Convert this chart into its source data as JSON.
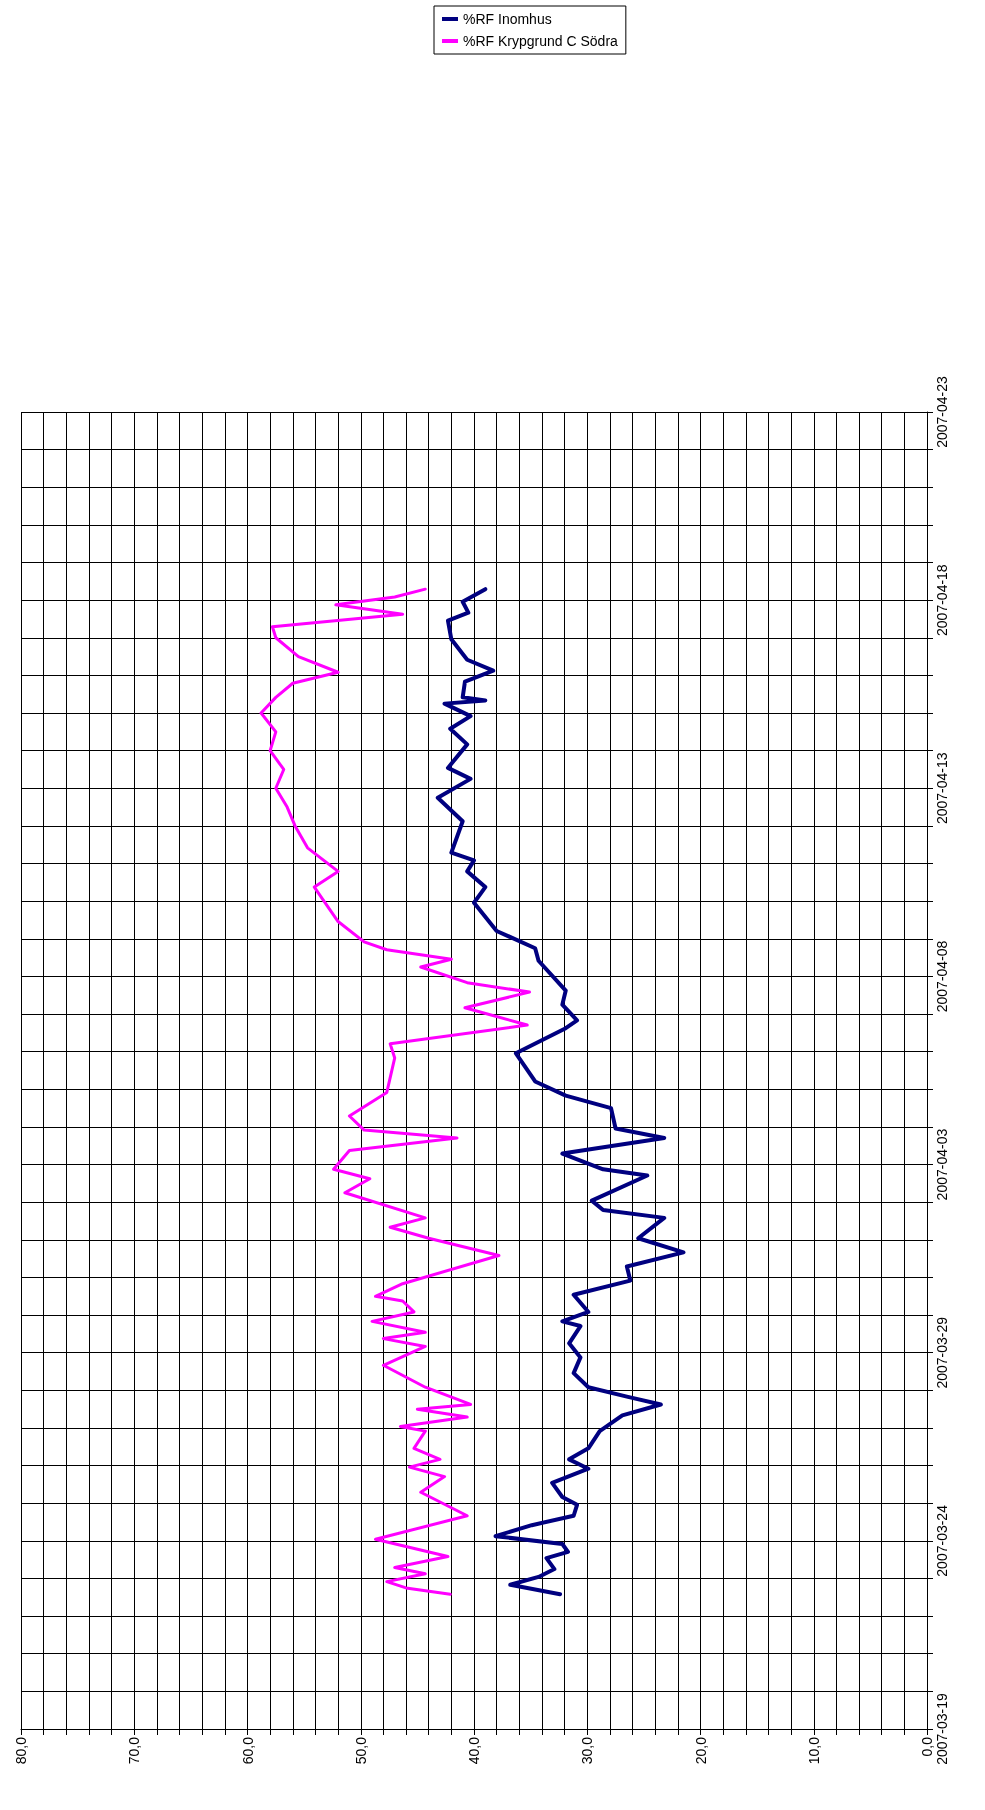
{
  "chart_data": {
    "type": "line",
    "orientation": "horizontal",
    "ylim": [
      "2007-03-19",
      "2007-04-23"
    ],
    "yticks": [
      "2007-03-19",
      {
        "value": "2007-03-20",
        "label": null
      },
      {
        "value": "2007-03-21",
        "label": null
      },
      {
        "value": "2007-03-22",
        "label": null
      },
      {
        "value": "2007-03-23",
        "label": null
      },
      "2007-03-24",
      {
        "value": "2007-03-25",
        "label": null
      },
      {
        "value": "2007-03-26",
        "label": null
      },
      {
        "value": "2007-03-27",
        "label": null
      },
      {
        "value": "2007-03-28",
        "label": null
      },
      "2007-03-29",
      {
        "value": "2007-03-30",
        "label": null
      },
      {
        "value": "2007-03-31",
        "label": null
      },
      {
        "value": "2007-04-01",
        "label": null
      },
      {
        "value": "2007-04-02",
        "label": null
      },
      "2007-04-03",
      {
        "value": "2007-04-04",
        "label": null
      },
      {
        "value": "2007-04-05",
        "label": null
      },
      {
        "value": "2007-04-06",
        "label": null
      },
      {
        "value": "2007-04-07",
        "label": null
      },
      "2007-04-08",
      {
        "value": "2007-04-09",
        "label": null
      },
      {
        "value": "2007-04-10",
        "label": null
      },
      {
        "value": "2007-04-11",
        "label": null
      },
      {
        "value": "2007-04-12",
        "label": null
      },
      "2007-04-13",
      {
        "value": "2007-04-14",
        "label": null
      },
      {
        "value": "2007-04-15",
        "label": null
      },
      {
        "value": "2007-04-16",
        "label": null
      },
      {
        "value": "2007-04-17",
        "label": null
      },
      "2007-04-18",
      {
        "value": "2007-04-19",
        "label": null
      },
      {
        "value": "2007-04-20",
        "label": null
      },
      {
        "value": "2007-04-21",
        "label": null
      },
      {
        "value": "2007-04-22",
        "label": null
      },
      "2007-04-23"
    ],
    "xlim": [
      80,
      0
    ],
    "xticks": [
      {
        "value": 0,
        "label": "0,0"
      },
      {
        "value": 2,
        "label": null
      },
      {
        "value": 4,
        "label": null
      },
      {
        "value": 6,
        "label": null
      },
      {
        "value": 8,
        "label": null
      },
      {
        "value": 10,
        "label": "10,0"
      },
      {
        "value": 12,
        "label": null
      },
      {
        "value": 14,
        "label": null
      },
      {
        "value": 16,
        "label": null
      },
      {
        "value": 18,
        "label": null
      },
      {
        "value": 20,
        "label": "20,0"
      },
      {
        "value": 22,
        "label": null
      },
      {
        "value": 24,
        "label": null
      },
      {
        "value": 26,
        "label": null
      },
      {
        "value": 28,
        "label": null
      },
      {
        "value": 30,
        "label": "30,0"
      },
      {
        "value": 32,
        "label": null
      },
      {
        "value": 34,
        "label": null
      },
      {
        "value": 36,
        "label": null
      },
      {
        "value": 38,
        "label": null
      },
      {
        "value": 40,
        "label": "40,0"
      },
      {
        "value": 42,
        "label": null
      },
      {
        "value": 44,
        "label": null
      },
      {
        "value": 46,
        "label": null
      },
      {
        "value": 48,
        "label": null
      },
      {
        "value": 50,
        "label": "50,0"
      },
      {
        "value": 52,
        "label": null
      },
      {
        "value": 54,
        "label": null
      },
      {
        "value": 56,
        "label": null
      },
      {
        "value": 58,
        "label": null
      },
      {
        "value": 60,
        "label": "60,0"
      },
      {
        "value": 62,
        "label": null
      },
      {
        "value": 64,
        "label": null
      },
      {
        "value": 66,
        "label": null
      },
      {
        "value": 68,
        "label": null
      },
      {
        "value": 70,
        "label": "70,0"
      },
      {
        "value": 72,
        "label": null
      },
      {
        "value": 74,
        "label": null
      },
      {
        "value": 76,
        "label": null
      },
      {
        "value": 78,
        "label": null
      },
      {
        "value": 80,
        "label": "80,0"
      }
    ],
    "grid": true,
    "legend": "top",
    "line_style": "solid",
    "series": [
      {
        "name": "%RF Inomhus",
        "color": "#000080",
        "x": [
          "2007-03-22T14:00",
          "2007-03-22T20:00",
          "2007-03-23T01:00",
          "2007-03-23T06:00",
          "2007-03-23T13:00",
          "2007-03-23T17:00",
          "2007-03-23T22:00",
          "2007-03-24T03:00",
          "2007-03-24T10:00",
          "2007-03-24T16:00",
          "2007-03-24T23:00",
          "2007-03-25T04:00",
          "2007-03-25T13:00",
          "2007-03-25T22:00",
          "2007-03-26T04:00",
          "2007-03-26T11:00",
          "2007-03-26T22:00",
          "2007-03-27T08:00",
          "2007-03-27T15:00",
          "2007-03-27T20:00",
          "2007-03-28T02:00",
          "2007-03-28T11:00",
          "2007-03-28T21:00",
          "2007-03-29T06:00",
          "2007-03-29T17:00",
          "2007-03-29T20:00",
          "2007-03-30T02:00",
          "2007-03-30T13:00",
          "2007-03-30T22:00",
          "2007-03-31T07:00",
          "2007-03-31T16:00",
          "2007-04-01T01:00",
          "2007-04-01T14:00",
          "2007-04-01T19:00",
          "2007-04-02T01:00",
          "2007-04-02T17:00",
          "2007-04-02T21:00",
          "2007-04-03T07:00",
          "2007-04-03T17:00",
          "2007-04-03T23:00",
          "2007-04-04T12:00",
          "2007-04-04T20:00",
          "2007-04-05T05:00",
          "2007-04-05T23:00",
          "2007-04-06T15:00",
          "2007-04-06T20:00",
          "2007-04-07T06:00",
          "2007-04-07T15:00",
          "2007-04-08T10:00",
          "2007-04-08T18:00",
          "2007-04-09T05:00",
          "2007-04-09T23:00",
          "2007-04-10T09:00",
          "2007-04-10T19:00",
          "2007-04-11T02:00",
          "2007-04-11T07:00",
          "2007-04-12T03:00",
          "2007-04-12T18:00",
          "2007-04-13T06:00",
          "2007-04-13T13:00",
          "2007-04-14T04:00",
          "2007-04-14T14:00",
          "2007-04-14T22:00",
          "2007-04-15T06:00",
          "2007-04-15T08:00",
          "2007-04-15T10:00",
          "2007-04-15T20:00",
          "2007-04-16T03:00",
          "2007-04-16T10:00",
          "2007-04-16T23:00",
          "2007-04-17T11:00",
          "2007-04-17T16:00",
          "2007-04-17T23:00",
          "2007-04-18T07:00"
        ],
        "values": [
          32.4,
          36.8,
          34.3,
          32.9,
          33.6,
          31.7,
          32.2,
          38.1,
          34.9,
          31.2,
          30.9,
          32.2,
          33.1,
          29.9,
          31.6,
          29.9,
          28.9,
          26.9,
          23.5,
          26.5,
          29.9,
          31.2,
          30.6,
          31.6,
          30.6,
          32.2,
          29.9,
          31.2,
          26.2,
          26.5,
          21.5,
          25.5,
          23.2,
          28.6,
          29.6,
          24.7,
          28.6,
          32.2,
          23.2,
          27.5,
          27.9,
          31.9,
          34.6,
          36.3,
          31.9,
          30.9,
          32.2,
          31.9,
          34.3,
          34.6,
          38.0,
          40.0,
          39.0,
          40.6,
          40.0,
          42.0,
          41.0,
          43.2,
          40.3,
          42.3,
          40.6,
          42.1,
          40.3,
          42.6,
          39.0,
          41.0,
          40.8,
          38.3,
          40.6,
          42.0,
          42.3,
          40.5,
          41.0,
          39.0
        ]
      },
      {
        "name": "%RF Krypgrund C Södra",
        "color": "#ff00ff",
        "x": [
          "2007-03-22T14:00",
          "2007-03-22T18:00",
          "2007-03-22T22:00",
          "2007-03-23T03:00",
          "2007-03-23T07:00",
          "2007-03-23T14:00",
          "2007-03-24T01:00",
          "2007-03-24T16:00",
          "2007-03-25T07:00",
          "2007-03-25T17:00",
          "2007-03-25T23:00",
          "2007-03-26T04:00",
          "2007-03-26T11:00",
          "2007-03-26T22:00",
          "2007-03-27T01:00",
          "2007-03-27T07:00",
          "2007-03-27T12:00",
          "2007-03-27T15:00",
          "2007-03-28T02:00",
          "2007-03-28T16:00",
          "2007-03-29T04:00",
          "2007-03-29T09:00",
          "2007-03-29T13:00",
          "2007-03-29T20:00",
          "2007-03-30T02:00",
          "2007-03-30T09:00",
          "2007-03-30T12:00",
          "2007-03-30T20:00",
          "2007-03-31T14:00",
          "2007-04-01T01:00",
          "2007-04-01T08:00",
          "2007-04-01T14:00",
          "2007-04-02T06:00",
          "2007-04-02T15:00",
          "2007-04-02T21:00",
          "2007-04-03T09:00",
          "2007-04-03T17:00",
          "2007-04-03T22:00",
          "2007-04-04T07:00",
          "2007-04-04T22:00",
          "2007-04-05T20:00",
          "2007-04-06T05:00",
          "2007-04-06T17:00",
          "2007-04-07T04:00",
          "2007-04-07T14:00",
          "2007-04-07T20:00",
          "2007-04-08T06:00",
          "2007-04-08T11:00",
          "2007-04-08T17:00",
          "2007-04-08T22:00",
          "2007-04-09T11:00",
          "2007-04-10T09:00",
          "2007-04-10T19:00",
          "2007-04-11T10:00",
          "2007-04-12T00:00",
          "2007-04-12T12:00",
          "2007-04-13T00:00",
          "2007-04-13T12:00",
          "2007-04-14T00:00",
          "2007-04-14T12:00",
          "2007-04-15T00:00",
          "2007-04-15T10:00",
          "2007-04-15T19:00",
          "2007-04-16T02:00",
          "2007-04-16T12:00",
          "2007-04-17T00:00",
          "2007-04-17T07:00",
          "2007-04-17T15:00",
          "2007-04-17T21:00",
          "2007-04-18T02:00",
          "2007-04-18T07:00"
        ],
        "values": [
          42.1,
          46.0,
          47.7,
          44.3,
          47.0,
          42.3,
          48.7,
          40.6,
          44.7,
          42.6,
          45.7,
          43.0,
          45.3,
          44.3,
          46.5,
          40.6,
          45.0,
          40.3,
          44.3,
          48.0,
          44.3,
          48.0,
          44.3,
          49.0,
          45.3,
          46.3,
          48.7,
          46.3,
          37.8,
          44.0,
          47.4,
          44.3,
          51.4,
          49.2,
          52.4,
          51.0,
          41.5,
          49.7,
          51.0,
          47.7,
          47.0,
          47.4,
          35.3,
          40.8,
          35.1,
          40.6,
          44.7,
          42.0,
          47.7,
          49.7,
          52.0,
          54.1,
          52.0,
          54.7,
          55.8,
          56.5,
          57.5,
          56.8,
          58.0,
          57.5,
          58.8,
          57.5,
          56.0,
          52.0,
          55.5,
          57.5,
          57.8,
          46.3,
          52.2,
          47.0,
          44.3
        ]
      }
    ]
  }
}
